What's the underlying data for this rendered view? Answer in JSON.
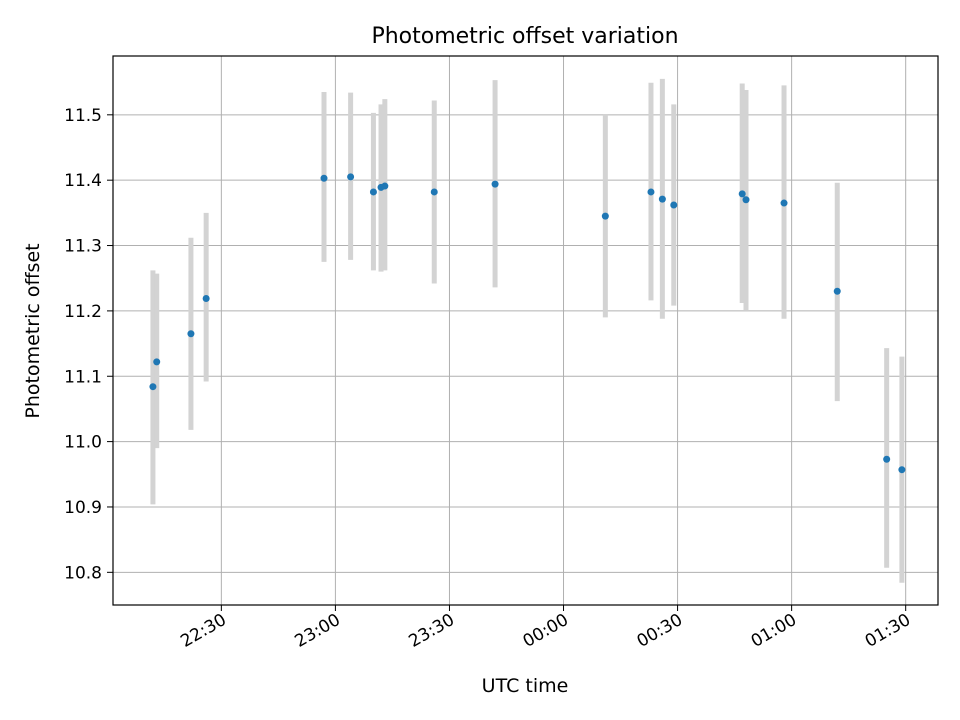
{
  "chart_data": {
    "type": "scatter",
    "title": "Photometric offset variation",
    "xlabel": "UTC time",
    "ylabel": "Photometric offset",
    "x_tick_labels": [
      "22:30",
      "23:00",
      "23:30",
      "00:00",
      "00:30",
      "01:00",
      "01:30"
    ],
    "x_tick_values": [
      "22:30",
      "23:00",
      "23:30",
      "24:00",
      "24:30",
      "25:00",
      "25:30"
    ],
    "y_ticks": [
      10.8,
      10.9,
      11.0,
      11.1,
      11.2,
      11.3,
      11.4,
      11.5
    ],
    "xlim": [
      "22:01:30",
      "25:38:30"
    ],
    "ylim": [
      10.75,
      11.59
    ],
    "grid": true,
    "errorbar_color": "#d3d3d3",
    "point_color": "#1f77b4",
    "series": [
      {
        "points": [
          {
            "x": "22:12",
            "y": 11.084,
            "ylow": 10.904,
            "yhigh": 11.262
          },
          {
            "x": "22:13",
            "y": 11.122,
            "ylow": 10.99,
            "yhigh": 11.257
          },
          {
            "x": "22:22",
            "y": 11.165,
            "ylow": 11.018,
            "yhigh": 11.312
          },
          {
            "x": "22:26",
            "y": 11.219,
            "ylow": 11.092,
            "yhigh": 11.35
          },
          {
            "x": "22:57",
            "y": 11.403,
            "ylow": 11.275,
            "yhigh": 11.535
          },
          {
            "x": "23:04",
            "y": 11.405,
            "ylow": 11.278,
            "yhigh": 11.534
          },
          {
            "x": "23:10",
            "y": 11.382,
            "ylow": 11.262,
            "yhigh": 11.503
          },
          {
            "x": "23:12",
            "y": 11.389,
            "ylow": 11.26,
            "yhigh": 11.516
          },
          {
            "x": "23:13",
            "y": 11.391,
            "ylow": 11.262,
            "yhigh": 11.524
          },
          {
            "x": "23:26",
            "y": 11.382,
            "ylow": 11.242,
            "yhigh": 11.522
          },
          {
            "x": "23:42",
            "y": 11.394,
            "ylow": 11.236,
            "yhigh": 11.553
          },
          {
            "x": "24:11",
            "y": 11.345,
            "ylow": 11.19,
            "yhigh": 11.5
          },
          {
            "x": "24:23",
            "y": 11.382,
            "ylow": 11.216,
            "yhigh": 11.549
          },
          {
            "x": "24:26",
            "y": 11.371,
            "ylow": 11.188,
            "yhigh": 11.555
          },
          {
            "x": "24:29",
            "y": 11.362,
            "ylow": 11.208,
            "yhigh": 11.516
          },
          {
            "x": "24:47",
            "y": 11.379,
            "ylow": 11.212,
            "yhigh": 11.548
          },
          {
            "x": "24:48",
            "y": 11.37,
            "ylow": 11.2,
            "yhigh": 11.538
          },
          {
            "x": "24:58",
            "y": 11.365,
            "ylow": 11.188,
            "yhigh": 11.545
          },
          {
            "x": "25:12",
            "y": 11.23,
            "ylow": 11.062,
            "yhigh": 11.396
          },
          {
            "x": "25:25",
            "y": 10.973,
            "ylow": 10.807,
            "yhigh": 11.143
          },
          {
            "x": "25:29",
            "y": 10.957,
            "ylow": 10.784,
            "yhigh": 11.13
          }
        ]
      }
    ]
  }
}
